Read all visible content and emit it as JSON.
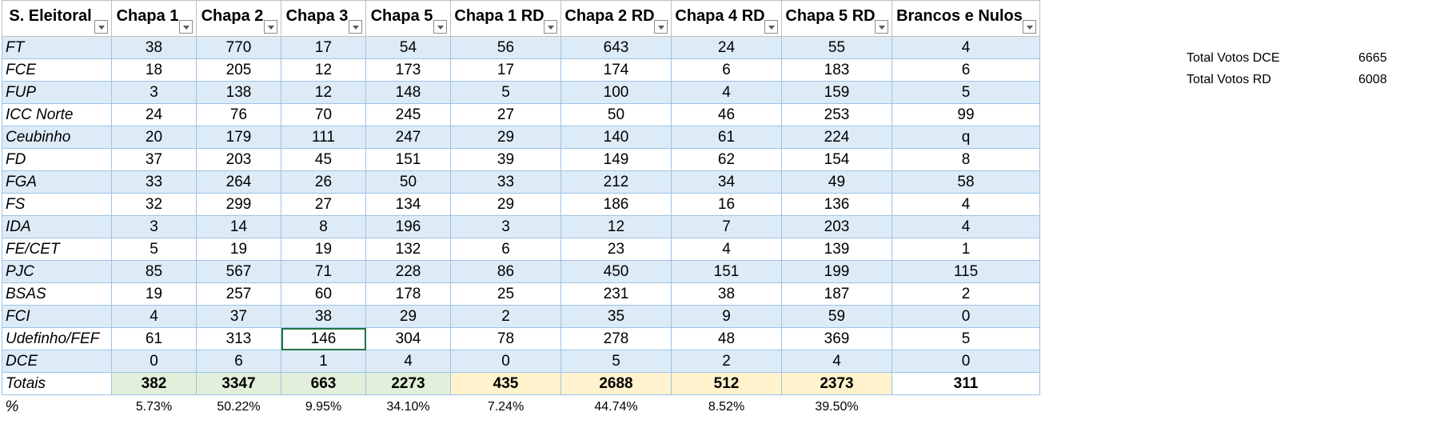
{
  "headers": [
    "S. Eleitoral",
    "Chapa 1",
    "Chapa 2",
    "Chapa 3",
    "Chapa 5",
    "Chapa 1 RD",
    "Chapa 2 RD",
    "Chapa 4 RD",
    "Chapa 5 RD",
    "Brancos e Nulos"
  ],
  "rows": [
    [
      "FT",
      "38",
      "770",
      "17",
      "54",
      "56",
      "643",
      "24",
      "55",
      "4"
    ],
    [
      "FCE",
      "18",
      "205",
      "12",
      "173",
      "17",
      "174",
      "6",
      "183",
      "6"
    ],
    [
      "FUP",
      "3",
      "138",
      "12",
      "148",
      "5",
      "100",
      "4",
      "159",
      "5"
    ],
    [
      "ICC Norte",
      "24",
      "76",
      "70",
      "245",
      "27",
      "50",
      "46",
      "253",
      "99"
    ],
    [
      "Ceubinho",
      "20",
      "179",
      "111",
      "247",
      "29",
      "140",
      "61",
      "224",
      "q"
    ],
    [
      "FD",
      "37",
      "203",
      "45",
      "151",
      "39",
      "149",
      "62",
      "154",
      "8"
    ],
    [
      "FGA",
      "33",
      "264",
      "26",
      "50",
      "33",
      "212",
      "34",
      "49",
      "58"
    ],
    [
      "FS",
      "32",
      "299",
      "27",
      "134",
      "29",
      "186",
      "16",
      "136",
      "4"
    ],
    [
      "IDA",
      "3",
      "14",
      "8",
      "196",
      "3",
      "12",
      "7",
      "203",
      "4"
    ],
    [
      "FE/CET",
      "5",
      "19",
      "19",
      "132",
      "6",
      "23",
      "4",
      "139",
      "1"
    ],
    [
      "PJC",
      "85",
      "567",
      "71",
      "228",
      "86",
      "450",
      "151",
      "199",
      "115"
    ],
    [
      "BSAS",
      "19",
      "257",
      "60",
      "178",
      "25",
      "231",
      "38",
      "187",
      "2"
    ],
    [
      "FCI",
      "4",
      "37",
      "38",
      "29",
      "2",
      "35",
      "9",
      "59",
      "0"
    ],
    [
      "Udefinho/FEF",
      "61",
      "313",
      "146",
      "304",
      "78",
      "278",
      "48",
      "369",
      "5"
    ],
    [
      "DCE",
      "0",
      "6",
      "1",
      "4",
      "0",
      "5",
      "2",
      "4",
      "0"
    ]
  ],
  "totals": [
    "Totais",
    "382",
    "3347",
    "663",
    "2273",
    "435",
    "2688",
    "512",
    "2373",
    "311"
  ],
  "percent": [
    "%",
    "5.73%",
    "50.22%",
    "9.95%",
    "34.10%",
    "7.24%",
    "44.74%",
    "8.52%",
    "39.50%",
    ""
  ],
  "summary": [
    {
      "label": "Total Votos DCE",
      "value": "6665"
    },
    {
      "label": "Total Votos RD",
      "value": "6008"
    }
  ],
  "colors": {
    "band": "#ddebf7",
    "grid": "#9dc3e6",
    "total_green": "#e2efda",
    "total_yellow": "#fff2cc",
    "selection": "#217346"
  }
}
